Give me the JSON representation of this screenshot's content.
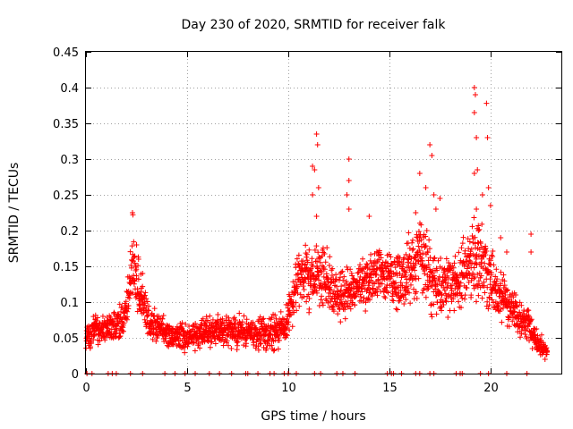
{
  "chart_data": {
    "type": "scatter",
    "title": "Day 230 of 2020, SRMTID for receiver falk",
    "xlabel": "GPS time / hours",
    "ylabel": "SRMTID / TECUs",
    "xlim": [
      0,
      23.5
    ],
    "ylim": [
      0,
      0.45
    ],
    "xticks": [
      0,
      5,
      10,
      15,
      20
    ],
    "yticks": [
      0,
      0.05,
      0.1,
      0.15,
      0.2,
      0.25,
      0.3,
      0.35,
      0.4,
      0.45
    ],
    "xtick_labels": [
      "0",
      "5",
      "10",
      "15",
      "20"
    ],
    "ytick_labels": [
      "0",
      "0.05",
      "0.1",
      "0.15",
      "0.2",
      "0.25",
      "0.3",
      "0.35",
      "0.4",
      "0.45"
    ],
    "grid": true,
    "marker": "+",
    "series": [
      {
        "name": "SRMTID",
        "color": "#ff0000",
        "profile": [
          [
            0.0,
            0.05,
            0.025
          ],
          [
            0.5,
            0.065,
            0.025
          ],
          [
            1.0,
            0.06,
            0.025
          ],
          [
            1.5,
            0.065,
            0.03
          ],
          [
            2.0,
            0.085,
            0.035
          ],
          [
            2.3,
            0.15,
            0.06
          ],
          [
            2.7,
            0.11,
            0.04
          ],
          [
            3.2,
            0.07,
            0.03
          ],
          [
            4.0,
            0.055,
            0.025
          ],
          [
            5.0,
            0.05,
            0.025
          ],
          [
            6.0,
            0.06,
            0.03
          ],
          [
            7.0,
            0.06,
            0.03
          ],
          [
            8.0,
            0.055,
            0.03
          ],
          [
            9.0,
            0.055,
            0.03
          ],
          [
            9.8,
            0.065,
            0.03
          ],
          [
            10.5,
            0.13,
            0.06
          ],
          [
            11.5,
            0.14,
            0.06
          ],
          [
            12.5,
            0.11,
            0.05
          ],
          [
            13.5,
            0.12,
            0.05
          ],
          [
            14.5,
            0.14,
            0.05
          ],
          [
            15.5,
            0.13,
            0.06
          ],
          [
            16.5,
            0.16,
            0.07
          ],
          [
            17.5,
            0.12,
            0.06
          ],
          [
            18.5,
            0.13,
            0.06
          ],
          [
            19.3,
            0.16,
            0.08
          ],
          [
            20.0,
            0.13,
            0.06
          ],
          [
            21.0,
            0.09,
            0.04
          ],
          [
            21.8,
            0.07,
            0.03
          ],
          [
            22.3,
            0.045,
            0.02
          ],
          [
            22.8,
            0.03,
            0.015
          ]
        ],
        "peaks": [
          [
            2.3,
            0.225
          ],
          [
            2.32,
            0.222
          ],
          [
            2.5,
            0.18
          ],
          [
            2.8,
            0.14
          ],
          [
            2.6,
            0.16
          ],
          [
            11.2,
            0.29
          ],
          [
            11.4,
            0.335
          ],
          [
            11.45,
            0.32
          ],
          [
            11.3,
            0.285
          ],
          [
            11.5,
            0.26
          ],
          [
            11.2,
            0.25
          ],
          [
            11.4,
            0.22
          ],
          [
            13.0,
            0.3
          ],
          [
            13.0,
            0.27
          ],
          [
            12.9,
            0.25
          ],
          [
            13.0,
            0.23
          ],
          [
            14.0,
            0.22
          ],
          [
            16.5,
            0.28
          ],
          [
            17.0,
            0.32
          ],
          [
            17.1,
            0.305
          ],
          [
            16.8,
            0.26
          ],
          [
            17.2,
            0.25
          ],
          [
            17.3,
            0.23
          ],
          [
            17.5,
            0.245
          ],
          [
            16.3,
            0.225
          ],
          [
            19.2,
            0.4
          ],
          [
            19.25,
            0.39
          ],
          [
            19.2,
            0.365
          ],
          [
            19.3,
            0.33
          ],
          [
            19.35,
            0.285
          ],
          [
            19.2,
            0.28
          ],
          [
            19.3,
            0.23
          ],
          [
            19.4,
            0.2
          ],
          [
            19.8,
            0.378
          ],
          [
            19.85,
            0.33
          ],
          [
            19.9,
            0.26
          ],
          [
            20.0,
            0.235
          ],
          [
            19.6,
            0.25
          ],
          [
            20.5,
            0.19
          ],
          [
            20.8,
            0.17
          ],
          [
            22.0,
            0.195
          ],
          [
            22.0,
            0.17
          ]
        ],
        "zeros": [
          0.05,
          0.3,
          1.1,
          1.3,
          1.5,
          2.2,
          2.8,
          3.9,
          4.4,
          4.9,
          5.4,
          6.1,
          6.6,
          7.2,
          7.9,
          8.0,
          8.5,
          9.1,
          9.3,
          9.8,
          10.0,
          10.4,
          11.3,
          11.6,
          12.4,
          12.7,
          13.3,
          14.9,
          15.1,
          15.2,
          15.6,
          16.3,
          16.5,
          17.0,
          17.2,
          18.3,
          18.5,
          18.6,
          19.5,
          19.9,
          20.8,
          21.8
        ]
      }
    ]
  }
}
